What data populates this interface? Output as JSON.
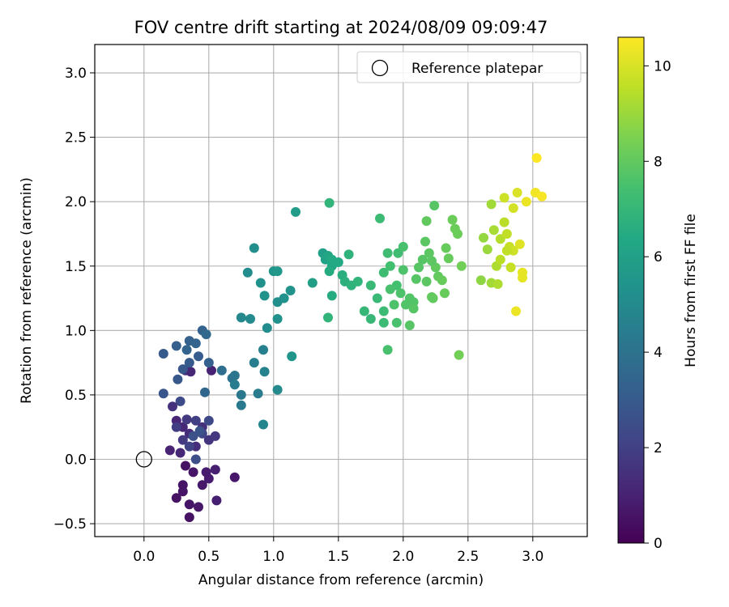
{
  "chart_data": {
    "type": "scatter",
    "title": "FOV centre drift starting at 2024/08/09 09:09:47",
    "xlabel": "Angular distance from reference (arcmin)",
    "ylabel": "Rotation from reference (arcmin)",
    "xlim": [
      -0.38,
      3.42
    ],
    "ylim": [
      -0.6,
      3.22
    ],
    "xticks": [
      0.0,
      0.5,
      1.0,
      1.5,
      2.0,
      2.5,
      3.0
    ],
    "xtick_labels": [
      "0.0",
      "0.5",
      "1.0",
      "1.5",
      "2.0",
      "2.5",
      "3.0"
    ],
    "yticks": [
      -0.5,
      0.0,
      0.5,
      1.0,
      1.5,
      2.0,
      2.5,
      3.0
    ],
    "ytick_labels": [
      "−0.5",
      "0.0",
      "0.5",
      "1.0",
      "1.5",
      "2.0",
      "2.5",
      "3.0"
    ],
    "grid": true,
    "legend": {
      "position": "upper-right",
      "entries": [
        {
          "label": "Reference platepar",
          "marker": "open-circle"
        }
      ]
    },
    "reference_point": {
      "x": 0.0,
      "y": 0.0
    },
    "colorbar": {
      "label": "Hours from first FF file",
      "colormap": "viridis",
      "range": [
        0,
        10.6
      ],
      "ticks": [
        0,
        2,
        4,
        6,
        8,
        10
      ],
      "tick_labels": [
        "0",
        "2",
        "4",
        "6",
        "8",
        "10"
      ]
    },
    "series": [
      {
        "colormap": "viridis",
        "points": [
          [
            0.32,
            -0.05,
            0.5
          ],
          [
            0.38,
            -0.1,
            0.6
          ],
          [
            0.45,
            -0.2,
            0.7
          ],
          [
            0.5,
            -0.15,
            0.8
          ],
          [
            0.55,
            -0.08,
            0.9
          ],
          [
            0.56,
            -0.32,
            0.9
          ],
          [
            0.7,
            -0.14,
            0.7
          ],
          [
            0.3,
            -0.2,
            0.6
          ],
          [
            0.25,
            -0.3,
            0.5
          ],
          [
            0.35,
            -0.35,
            0.6
          ],
          [
            0.42,
            -0.37,
            0.7
          ],
          [
            0.35,
            -0.45,
            0.5
          ],
          [
            0.3,
            -0.25,
            0.6
          ],
          [
            0.48,
            -0.1,
            0.8
          ],
          [
            0.2,
            0.07,
            1.0
          ],
          [
            0.25,
            0.3,
            1.1
          ],
          [
            0.3,
            0.25,
            1.2
          ],
          [
            0.35,
            0.2,
            1.3
          ],
          [
            0.4,
            0.1,
            1.4
          ],
          [
            0.45,
            0.25,
            1.5
          ],
          [
            0.5,
            0.15,
            1.6
          ],
          [
            0.55,
            0.18,
            1.7
          ],
          [
            0.3,
            0.15,
            1.8
          ],
          [
            0.25,
            0.25,
            1.9
          ],
          [
            0.4,
            0.3,
            2.0
          ],
          [
            0.35,
            0.1,
            2.1
          ],
          [
            0.45,
            0.2,
            2.2
          ],
          [
            0.5,
            0.3,
            2.3
          ],
          [
            0.28,
            0.45,
            2.4
          ],
          [
            0.4,
            0.0,
            2.5
          ],
          [
            0.38,
            0.18,
            2.6
          ],
          [
            0.43,
            0.22,
            2.7
          ],
          [
            0.28,
            0.05,
            1.2
          ],
          [
            0.22,
            0.41,
            1.5
          ],
          [
            0.33,
            0.31,
            1.8
          ],
          [
            0.32,
            0.69,
            1.4
          ],
          [
            0.36,
            0.68,
            1.2
          ],
          [
            0.52,
            0.69,
            1.0
          ],
          [
            0.15,
            0.51,
            2.8
          ],
          [
            0.26,
            0.62,
            2.9
          ],
          [
            0.35,
            0.75,
            3.0
          ],
          [
            0.3,
            0.7,
            2.9
          ],
          [
            0.42,
            0.8,
            3.1
          ],
          [
            0.5,
            0.75,
            3.2
          ],
          [
            0.15,
            0.82,
            3.0
          ],
          [
            0.25,
            0.88,
            3.2
          ],
          [
            0.35,
            0.92,
            3.3
          ],
          [
            0.4,
            0.9,
            3.4
          ],
          [
            0.45,
            1.0,
            3.3
          ],
          [
            0.33,
            0.85,
            3.4
          ],
          [
            0.47,
            0.52,
            3.5
          ],
          [
            0.48,
            0.97,
            3.6
          ],
          [
            0.6,
            0.69,
            3.8
          ],
          [
            0.68,
            0.63,
            4.0
          ],
          [
            0.7,
            0.65,
            4.1
          ],
          [
            0.75,
            0.5,
            4.2
          ],
          [
            0.75,
            0.42,
            4.3
          ],
          [
            0.88,
            0.51,
            4.4
          ],
          [
            0.85,
            0.75,
            4.5
          ],
          [
            0.92,
            0.85,
            4.6
          ],
          [
            0.93,
            0.68,
            4.7
          ],
          [
            0.7,
            0.58,
            4.4
          ],
          [
            0.92,
            0.27,
            4.8
          ],
          [
            1.03,
            0.54,
            5.0
          ],
          [
            0.75,
            1.1,
            4.9
          ],
          [
            0.82,
            1.09,
            5.0
          ],
          [
            0.95,
            1.02,
            5.1
          ],
          [
            1.03,
            1.22,
            5.2
          ],
          [
            1.08,
            1.25,
            5.3
          ],
          [
            1.13,
            1.31,
            5.4
          ],
          [
            1.03,
            1.09,
            5.3
          ],
          [
            1.14,
            0.8,
            5.5
          ],
          [
            0.8,
            1.45,
            5.1
          ],
          [
            0.85,
            1.64,
            5.2
          ],
          [
            0.9,
            1.37,
            5.3
          ],
          [
            0.93,
            1.27,
            5.4
          ],
          [
            1.0,
            1.46,
            5.5
          ],
          [
            1.03,
            1.46,
            5.6
          ],
          [
            1.17,
            1.92,
            5.8
          ],
          [
            1.3,
            1.37,
            5.9
          ],
          [
            1.38,
            1.6,
            6.0
          ],
          [
            1.4,
            1.55,
            6.1
          ],
          [
            1.42,
            1.58,
            6.2
          ],
          [
            1.45,
            1.5,
            6.3
          ],
          [
            1.5,
            1.53,
            6.4
          ],
          [
            1.45,
            1.55,
            6.4
          ],
          [
            1.43,
            1.46,
            6.5
          ],
          [
            1.45,
            1.27,
            6.5
          ],
          [
            1.53,
            1.43,
            6.6
          ],
          [
            1.55,
            1.38,
            6.7
          ],
          [
            1.6,
            1.35,
            6.8
          ],
          [
            1.65,
            1.38,
            6.9
          ],
          [
            1.58,
            1.59,
            6.8
          ],
          [
            1.43,
            1.99,
            6.9
          ],
          [
            1.42,
            1.1,
            6.9
          ],
          [
            1.7,
            1.15,
            7.0
          ],
          [
            1.75,
            1.09,
            7.0
          ],
          [
            1.75,
            1.35,
            7.1
          ],
          [
            1.8,
            1.25,
            7.1
          ],
          [
            1.85,
            1.15,
            7.2
          ],
          [
            1.85,
            1.06,
            7.2
          ],
          [
            1.82,
            1.87,
            7.2
          ],
          [
            1.85,
            1.45,
            7.3
          ],
          [
            1.88,
            1.6,
            7.3
          ],
          [
            1.9,
            1.5,
            7.4
          ],
          [
            1.95,
            1.35,
            7.4
          ],
          [
            1.95,
            1.06,
            7.5
          ],
          [
            1.88,
            0.85,
            7.5
          ],
          [
            1.9,
            1.32,
            7.5
          ],
          [
            1.93,
            1.2,
            7.6
          ],
          [
            1.98,
            1.29,
            7.6
          ],
          [
            2.0,
            1.47,
            7.6
          ],
          [
            2.02,
            1.2,
            7.7
          ],
          [
            2.05,
            1.25,
            7.7
          ],
          [
            2.08,
            1.22,
            7.7
          ],
          [
            2.1,
            1.4,
            7.8
          ],
          [
            2.15,
            1.55,
            7.8
          ],
          [
            2.12,
            1.49,
            7.8
          ],
          [
            2.17,
            1.69,
            7.9
          ],
          [
            2.2,
            1.6,
            7.9
          ],
          [
            2.18,
            1.38,
            7.9
          ],
          [
            2.23,
            1.25,
            8.0
          ],
          [
            2.25,
            1.49,
            8.0
          ],
          [
            2.27,
            1.42,
            8.0
          ],
          [
            2.22,
            1.54,
            7.9
          ],
          [
            2.18,
            1.85,
            8.0
          ],
          [
            2.24,
            1.97,
            7.8
          ],
          [
            2.3,
            1.39,
            8.1
          ],
          [
            2.32,
            1.29,
            8.1
          ],
          [
            2.33,
            1.64,
            8.1
          ],
          [
            2.38,
            1.86,
            8.2
          ],
          [
            2.4,
            1.79,
            8.2
          ],
          [
            2.42,
            1.75,
            8.2
          ],
          [
            2.45,
            1.5,
            8.3
          ],
          [
            2.43,
            0.81,
            8.3
          ],
          [
            2.35,
            1.56,
            8.1
          ],
          [
            2.05,
            1.04,
            7.8
          ],
          [
            1.96,
            1.6,
            7.3
          ],
          [
            2.0,
            1.65,
            7.5
          ],
          [
            2.08,
            1.17,
            7.8
          ],
          [
            2.22,
            1.26,
            8.0
          ],
          [
            2.6,
            1.39,
            8.8
          ],
          [
            2.62,
            1.72,
            8.9
          ],
          [
            2.65,
            1.63,
            9.0
          ],
          [
            2.68,
            1.37,
            9.1
          ],
          [
            2.68,
            1.98,
            9.1
          ],
          [
            2.7,
            1.78,
            9.2
          ],
          [
            2.72,
            1.5,
            9.3
          ],
          [
            2.73,
            1.36,
            9.3
          ],
          [
            2.75,
            1.71,
            9.4
          ],
          [
            2.78,
            1.84,
            9.5
          ],
          [
            2.8,
            1.75,
            9.6
          ],
          [
            2.82,
            1.65,
            9.7
          ],
          [
            2.85,
            1.62,
            9.8
          ],
          [
            2.83,
            1.49,
            9.7
          ],
          [
            2.85,
            1.95,
            9.9
          ],
          [
            2.88,
            2.07,
            10.0
          ],
          [
            2.9,
            1.67,
            10.1
          ],
          [
            2.92,
            1.41,
            10.2
          ],
          [
            2.92,
            1.45,
            10.2
          ],
          [
            2.95,
            2.0,
            10.3
          ],
          [
            3.02,
            2.07,
            10.4
          ],
          [
            3.07,
            2.04,
            10.5
          ],
          [
            3.03,
            2.34,
            10.6
          ],
          [
            2.87,
            1.15,
            10.3
          ],
          [
            2.78,
            2.03,
            9.8
          ],
          [
            2.8,
            1.62,
            9.6
          ],
          [
            2.75,
            1.55,
            9.5
          ]
        ]
      }
    ]
  }
}
